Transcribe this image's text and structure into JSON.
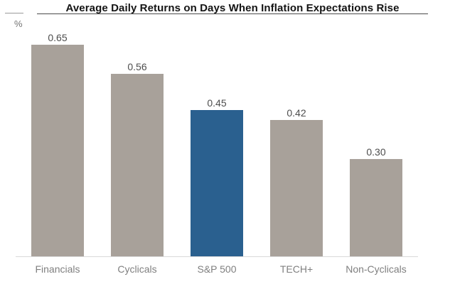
{
  "header": {
    "title": "Average Daily Returns on Days When Inflation Expectations Rise",
    "unit_label": "%"
  },
  "chart_data": {
    "type": "bar",
    "title": "Average Daily Returns on Days When Inflation Expectations Rise",
    "ylabel": "%",
    "xlabel": "",
    "categories": [
      "Financials",
      "Cyclicals",
      "S&P 500",
      "TECH+",
      "Non-Cyclicals"
    ],
    "values": [
      0.65,
      0.56,
      0.45,
      0.42,
      0.3
    ],
    "value_labels": [
      "0.65",
      "0.56",
      "0.45",
      "0.42",
      "0.30"
    ],
    "highlight_category": "S&P 500",
    "ylim": [
      0,
      0.7
    ],
    "grid": false,
    "legend": false,
    "colors": {
      "bar_default": "#a8a19a",
      "bar_highlight": "#2a608f",
      "value_label": "#4d4d4d",
      "category_label": "#7f7f7f",
      "axis_line": "#d9d9d9",
      "title_text": "#141414",
      "title_rule": "#4a4a4a"
    }
  }
}
